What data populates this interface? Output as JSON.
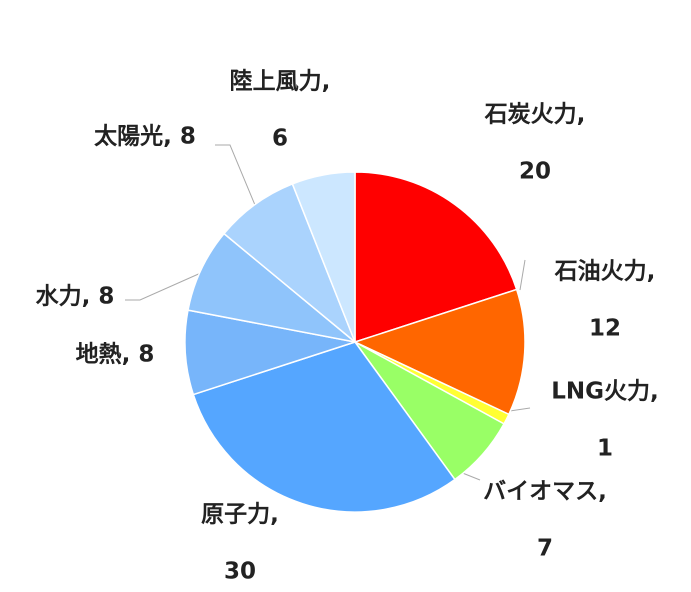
{
  "chart_data": {
    "type": "pie",
    "values": [
      20,
      12,
      1,
      7,
      30,
      8,
      8,
      8,
      6
    ],
    "value_labels": [
      [
        "石炭火力,",
        "20"
      ],
      [
        "石油火力,",
        "12"
      ],
      [
        "LNG火力,",
        "1"
      ],
      [
        "バイオマス,",
        "7"
      ],
      [
        "原子力,",
        "30"
      ],
      [
        "地熱, 8"
      ],
      [
        "水力, 8"
      ],
      [
        "太陽光, 8"
      ],
      [
        "陸上風力,",
        "6"
      ]
    ],
    "colors": [
      "#ff0000",
      "#ff6600",
      "#ffff33",
      "#99ff66",
      "#55a6ff",
      "#77b5fa",
      "#8fc4fb",
      "#aad3fd",
      "#cce7ff"
    ]
  }
}
